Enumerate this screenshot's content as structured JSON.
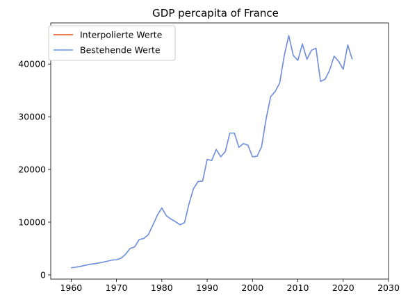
{
  "chart_data": {
    "type": "line",
    "title": "GDP percapita of France",
    "xlabel": "",
    "ylabel": "",
    "xlim": [
      1955.5,
      2030
    ],
    "ylim": [
      -800,
      47800
    ],
    "xticks": [
      1960,
      1970,
      1980,
      1990,
      2000,
      2010,
      2020,
      2030
    ],
    "yticks": [
      0,
      10000,
      20000,
      30000,
      40000
    ],
    "grid": false,
    "legend_position": "top-left",
    "x": [
      1960,
      1961,
      1962,
      1963,
      1964,
      1965,
      1966,
      1967,
      1968,
      1969,
      1970,
      1971,
      1972,
      1973,
      1974,
      1975,
      1976,
      1977,
      1978,
      1979,
      1980,
      1981,
      1982,
      1983,
      1984,
      1985,
      1986,
      1987,
      1988,
      1989,
      1990,
      1991,
      1992,
      1993,
      1994,
      1995,
      1996,
      1997,
      1998,
      1999,
      2000,
      2001,
      2002,
      2003,
      2004,
      2005,
      2006,
      2007,
      2008,
      2009,
      2010,
      2011,
      2012,
      2013,
      2014,
      2015,
      2016,
      2017,
      2018,
      2019,
      2020,
      2021,
      2022
    ],
    "series": [
      {
        "name": "Interpolierte Werte",
        "color": "#e8501a",
        "values": [
          1340,
          1450,
          1600,
          1800,
          1980,
          2100,
          2250,
          2400,
          2600,
          2800,
          2880,
          3150,
          3900,
          5000,
          5300,
          6700,
          6900,
          7600,
          9400,
          11300,
          12700,
          11200,
          10600,
          10100,
          9500,
          9900,
          13500,
          16400,
          17700,
          17800,
          21900,
          21700,
          23800,
          22400,
          23400,
          26900,
          26900,
          24200,
          24900,
          24600,
          22400,
          22500,
          24300,
          29600,
          33800,
          34800,
          36400,
          41600,
          45400,
          41600,
          40700,
          43800,
          40900,
          42600,
          43000,
          36700,
          37100,
          38800,
          41500,
          40500,
          39000,
          43600,
          40900
        ]
      },
      {
        "name": "Bestehende Werte",
        "color": "#6495ed",
        "values": [
          1340,
          1450,
          1600,
          1800,
          1980,
          2100,
          2250,
          2400,
          2600,
          2800,
          2880,
          3150,
          3900,
          5000,
          5300,
          6700,
          6900,
          7600,
          9400,
          11300,
          12700,
          11200,
          10600,
          10100,
          9500,
          9900,
          13500,
          16400,
          17700,
          17800,
          21900,
          21700,
          23800,
          22400,
          23400,
          26900,
          26900,
          24200,
          24900,
          24600,
          22400,
          22500,
          24300,
          29600,
          33800,
          34800,
          36400,
          41600,
          45400,
          41600,
          40700,
          43800,
          40900,
          42600,
          43000,
          36700,
          37100,
          38800,
          41500,
          40500,
          39000,
          43600,
          40900
        ]
      }
    ]
  }
}
